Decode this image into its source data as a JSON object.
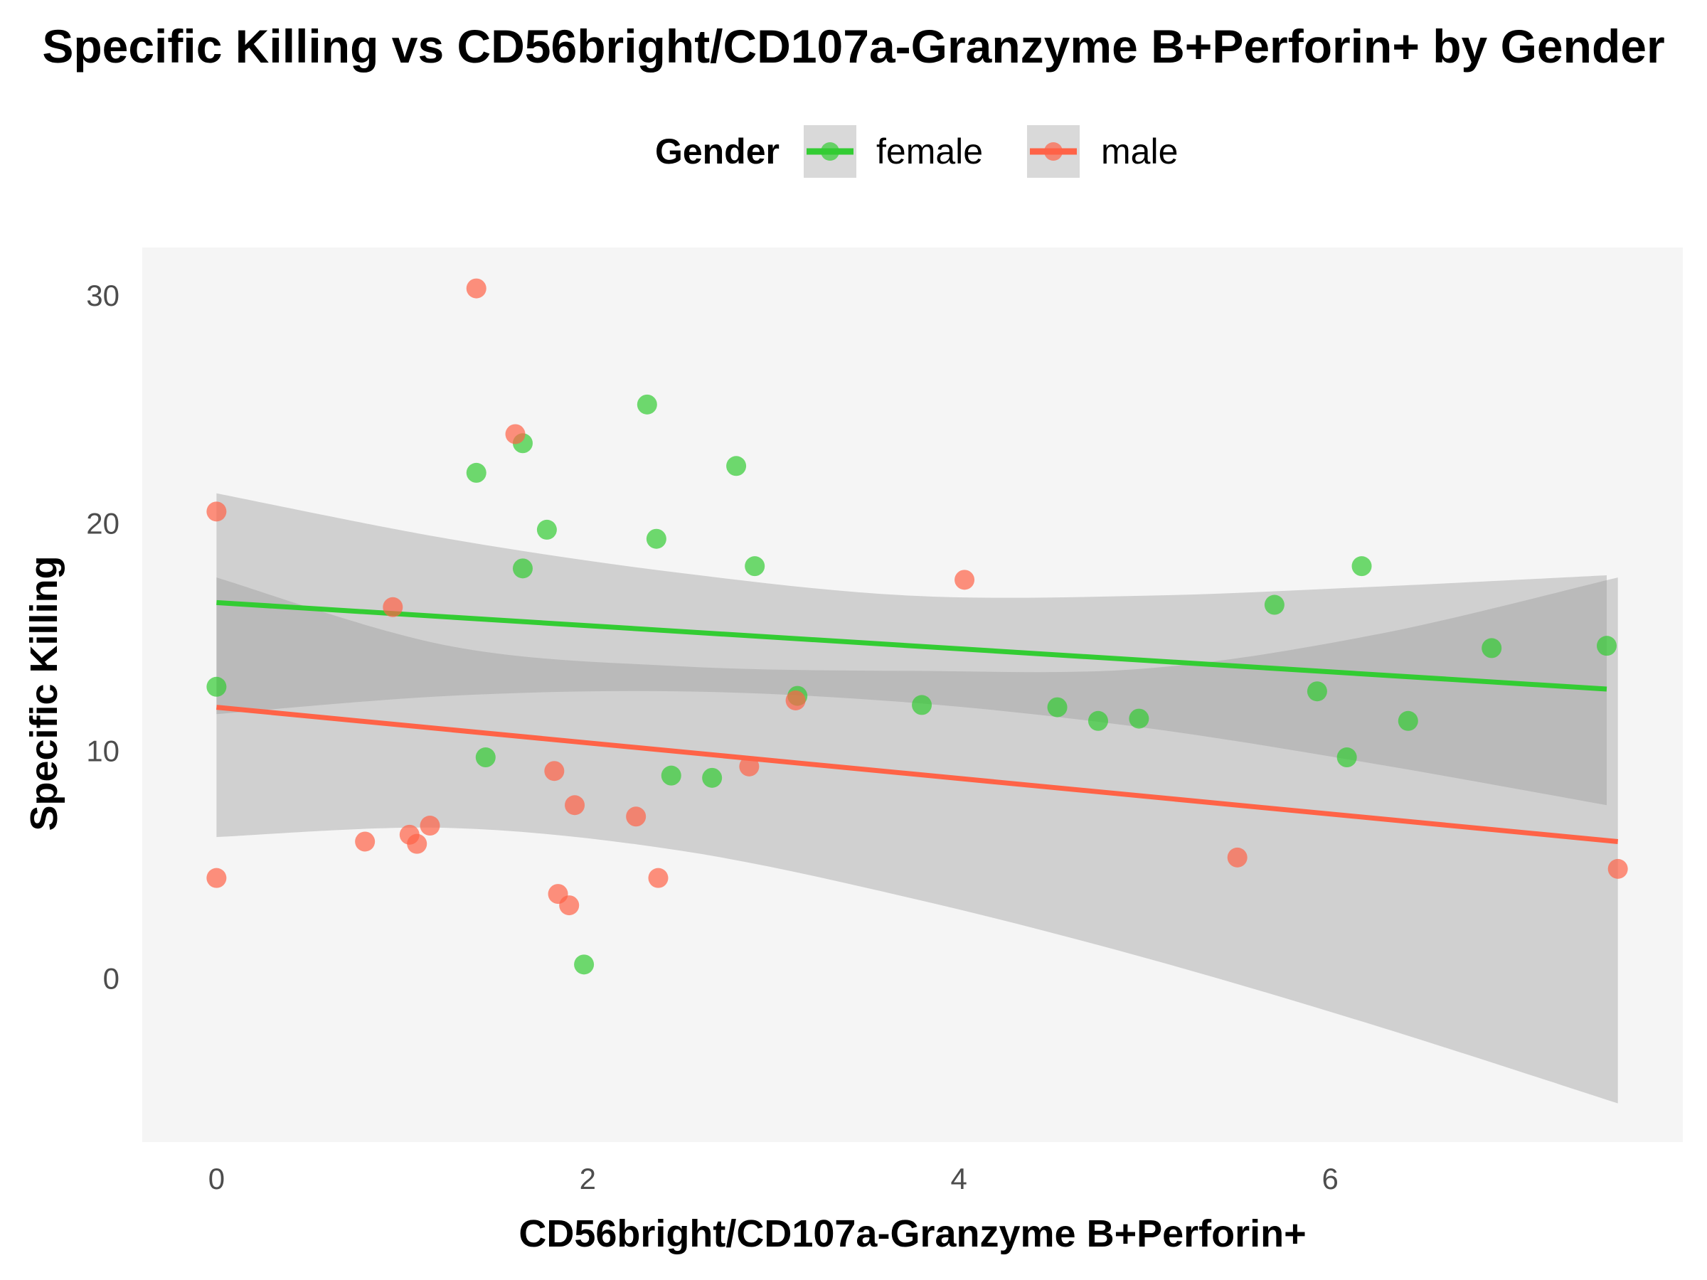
{
  "chart_data": {
    "type": "scatter",
    "title": "Specific Killing vs CD56bright/CD107a-Granzyme B+Perforin+ by Gender",
    "xlabel": "CD56bright/CD107a-Granzyme B+Perforin+",
    "ylabel": "Specific Killing",
    "xlim": [
      -0.4,
      7.9
    ],
    "ylim": [
      -7.2,
      32.1
    ],
    "xticks": [
      0,
      2,
      4,
      6
    ],
    "yticks": [
      0,
      10,
      20,
      30
    ],
    "x_tick_labels": [
      "0",
      "2",
      "4",
      "6"
    ],
    "y_tick_labels": [
      "0",
      "10",
      "20",
      "30"
    ],
    "grid": false,
    "panel_background": "#f5f5f5",
    "legend": {
      "title": "Gender",
      "position": "top",
      "entries": [
        "female",
        "male"
      ]
    },
    "series": [
      {
        "name": "female",
        "color": "#33cc33",
        "points": [
          [
            0.0,
            12.8
          ],
          [
            1.4,
            22.2
          ],
          [
            1.45,
            9.7
          ],
          [
            1.65,
            18.0
          ],
          [
            1.65,
            23.5
          ],
          [
            1.78,
            19.7
          ],
          [
            1.98,
            0.6
          ],
          [
            2.32,
            25.2
          ],
          [
            2.37,
            19.3
          ],
          [
            2.45,
            8.9
          ],
          [
            2.67,
            8.8
          ],
          [
            2.8,
            22.5
          ],
          [
            2.9,
            18.1
          ],
          [
            3.13,
            12.4
          ],
          [
            3.8,
            12.0
          ],
          [
            4.53,
            11.9
          ],
          [
            4.75,
            11.3
          ],
          [
            4.97,
            11.4
          ],
          [
            5.7,
            16.4
          ],
          [
            5.93,
            12.6
          ],
          [
            6.09,
            9.7
          ],
          [
            6.17,
            18.1
          ],
          [
            6.42,
            11.3
          ],
          [
            6.87,
            14.5
          ],
          [
            7.49,
            14.6
          ]
        ],
        "fit": {
          "x": [
            0.0,
            7.49
          ],
          "y": [
            16.5,
            12.7
          ]
        },
        "ci_band": {
          "x": [
            0.0,
            1.25,
            2.5,
            3.75,
            5.0,
            6.25,
            7.49
          ],
          "lower": [
            11.6,
            12.4,
            12.6,
            12.1,
            11.0,
            9.4,
            7.6
          ],
          "upper": [
            21.3,
            19.3,
            17.8,
            16.8,
            16.8,
            17.2,
            17.7
          ]
        }
      },
      {
        "name": "male",
        "color": "#ff6347",
        "points": [
          [
            0.0,
            20.5
          ],
          [
            0.0,
            4.4
          ],
          [
            0.8,
            6.0
          ],
          [
            0.95,
            16.3
          ],
          [
            1.04,
            6.3
          ],
          [
            1.08,
            5.9
          ],
          [
            1.15,
            6.7
          ],
          [
            1.4,
            30.3
          ],
          [
            1.61,
            23.9
          ],
          [
            1.82,
            9.1
          ],
          [
            1.84,
            3.7
          ],
          [
            1.9,
            3.2
          ],
          [
            1.93,
            7.6
          ],
          [
            2.26,
            7.1
          ],
          [
            2.38,
            4.4
          ],
          [
            2.87,
            9.3
          ],
          [
            3.12,
            12.2
          ],
          [
            4.03,
            17.5
          ],
          [
            5.5,
            5.3
          ],
          [
            7.55,
            4.8
          ]
        ],
        "fit": {
          "x": [
            0.0,
            7.55
          ],
          "y": [
            11.9,
            6.0
          ]
        },
        "ci_band": {
          "x": [
            0.0,
            1.25,
            2.5,
            3.75,
            5.0,
            6.25,
            7.55
          ],
          "lower": [
            6.2,
            6.6,
            5.6,
            3.5,
            0.9,
            -2.1,
            -5.5
          ],
          "upper": [
            17.6,
            14.6,
            13.7,
            13.5,
            13.6,
            15.1,
            17.6
          ]
        }
      }
    ]
  }
}
